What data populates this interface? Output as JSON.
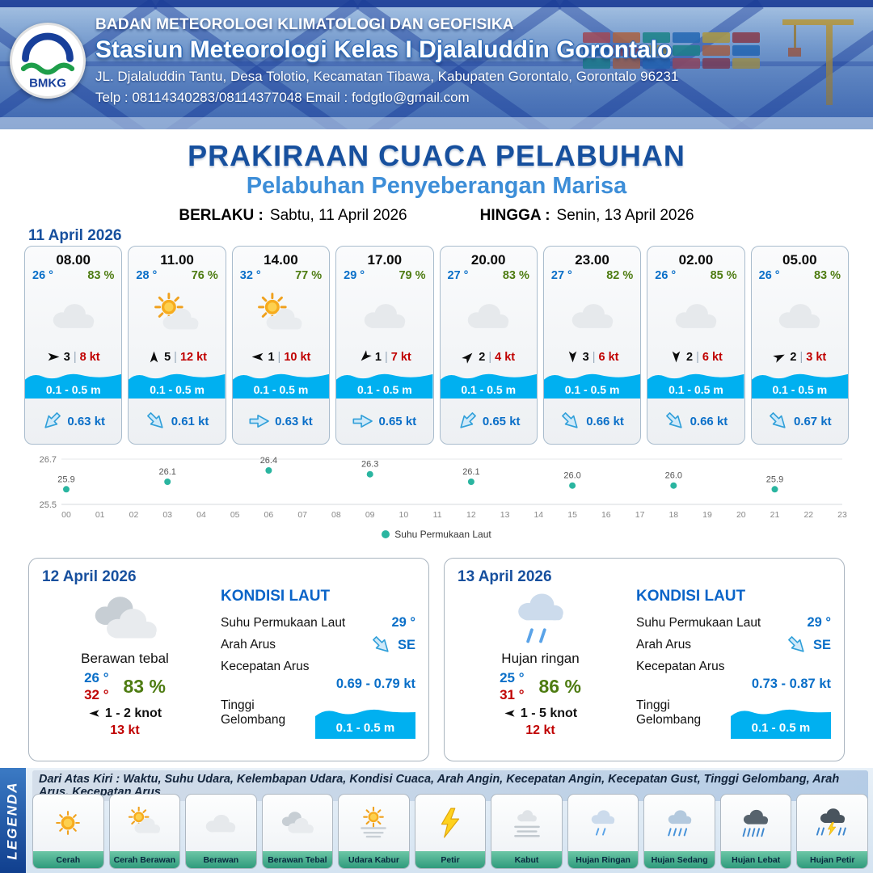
{
  "colors": {
    "dark_blue": "#17509e",
    "light_blue": "#3d8ed8",
    "temp_blue": "#0a6fc8",
    "humidity_green": "#4e7c12",
    "gust_red": "#c00000",
    "wave_cyan": "#00b0f0",
    "chart_teal": "#2ab5a0"
  },
  "ui": {
    "wind_separator": "|"
  },
  "header": {
    "logo_text": "BMKG",
    "agency": "BADAN METEOROLOGI KLIMATOLOGI DAN GEOFISIKA",
    "station": "Stasiun Meteorologi Kelas I Djalaluddin Gorontalo",
    "address": "JL. Djalaluddin Tantu, Desa Tolotio, Kecamatan Tibawa, Kabupaten Gorontalo, Gorontalo 96231",
    "contact": "Telp : 08114340283/08114377048 Email : fodgtlo@gmail.com"
  },
  "title": {
    "main": "PRAKIRAAN CUACA PELABUHAN",
    "subtitle": "Pelabuhan Penyeberangan Marisa",
    "valid_from_label": "BERLAKU :",
    "valid_from": "Sabtu, 11 April 2026",
    "valid_to_label": "HINGGA :",
    "valid_to": "Senin, 13 April 2026"
  },
  "forecast_date": "11 April 2026",
  "hourly": [
    {
      "time": "08.00",
      "temp": "26 °",
      "humidity": "83 %",
      "icon": "cloudy",
      "wind_deg": 0,
      "wind": "3",
      "gust": "8 kt",
      "wave": "0.1 - 0.5 m",
      "current_deg": 135,
      "current": "0.63 kt"
    },
    {
      "time": "11.00",
      "temp": "28 °",
      "humidity": "76 %",
      "icon": "partly",
      "wind_deg": -90,
      "wind": "5",
      "gust": "12 kt",
      "wave": "0.1 - 0.5 m",
      "current_deg": 45,
      "current": "0.61 kt"
    },
    {
      "time": "14.00",
      "temp": "32 °",
      "humidity": "77 %",
      "icon": "partly",
      "wind_deg": 180,
      "wind": "1",
      "gust": "10 kt",
      "wave": "0.1 - 0.5 m",
      "current_deg": 0,
      "current": "0.63 kt"
    },
    {
      "time": "17.00",
      "temp": "29 °",
      "humidity": "79 %",
      "icon": "cloudy",
      "wind_deg": 135,
      "wind": "1",
      "gust": "7 kt",
      "wave": "0.1 - 0.5 m",
      "current_deg": 0,
      "current": "0.65 kt"
    },
    {
      "time": "20.00",
      "temp": "27 °",
      "humidity": "83 %",
      "icon": "cloudy",
      "wind_deg": -45,
      "wind": "2",
      "gust": "4 kt",
      "wave": "0.1 - 0.5 m",
      "current_deg": 135,
      "current": "0.65 kt"
    },
    {
      "time": "23.00",
      "temp": "27 °",
      "humidity": "82 %",
      "icon": "cloudy",
      "wind_deg": 90,
      "wind": "3",
      "gust": "6 kt",
      "wave": "0.1 - 0.5 m",
      "current_deg": 45,
      "current": "0.66 kt"
    },
    {
      "time": "02.00",
      "temp": "26 °",
      "humidity": "85 %",
      "icon": "cloudy",
      "wind_deg": 90,
      "wind": "2",
      "gust": "6 kt",
      "wave": "0.1 - 0.5 m",
      "current_deg": 45,
      "current": "0.66 kt"
    },
    {
      "time": "05.00",
      "temp": "26 °",
      "humidity": "83 %",
      "icon": "cloudy",
      "wind_deg": -25,
      "wind": "2",
      "gust": "3 kt",
      "wave": "0.1 - 0.5 m",
      "current_deg": 45,
      "current": "0.67 kt"
    }
  ],
  "chart_data": {
    "type": "scatter",
    "series_name": "Suhu Permukaan Laut",
    "x": [
      0,
      3,
      6,
      9,
      12,
      15,
      18,
      21
    ],
    "values": [
      25.9,
      26.1,
      26.4,
      26.3,
      26.1,
      26.0,
      26.0,
      25.9
    ],
    "xticks": [
      "00",
      "01",
      "02",
      "03",
      "04",
      "05",
      "06",
      "07",
      "08",
      "09",
      "10",
      "11",
      "12",
      "13",
      "14",
      "15",
      "16",
      "17",
      "18",
      "19",
      "20",
      "21",
      "22",
      "23"
    ],
    "ylim": [
      25.5,
      26.7
    ],
    "xlabel": "",
    "ylabel": "",
    "grid": "minimal",
    "legend_position": "bottom",
    "color": "#2ab5a0"
  },
  "daily": [
    {
      "date": "12 April 2026",
      "icon": "cloudy-thick",
      "condition": "Berawan tebal",
      "temp_min": "26 °",
      "temp_max": "32 °",
      "humidity": "83 %",
      "wind_deg": 180,
      "wind_range": "1 - 2 knot",
      "gust": "13 kt",
      "sea": {
        "heading": "KONDISI LAUT",
        "sst_label": "Suhu Permukaan Laut",
        "sst": "29 °",
        "current_dir_label": "Arah Arus",
        "current_dir": "SE",
        "current_dir_deg": 45,
        "current_speed_label": "Kecepatan Arus",
        "current_speed": "0.69 - 0.79 kt",
        "wave_label": "Tinggi Gelombang",
        "wave": "0.1 - 0.5 m"
      }
    },
    {
      "date": "13 April 2026",
      "icon": "rain-light",
      "condition": "Hujan ringan",
      "temp_min": "25 °",
      "temp_max": "31 °",
      "humidity": "86 %",
      "wind_deg": 180,
      "wind_range": "1 - 5 knot",
      "gust": "12 kt",
      "sea": {
        "heading": "KONDISI LAUT",
        "sst_label": "Suhu Permukaan Laut",
        "sst": "29 °",
        "current_dir_label": "Arah Arus",
        "current_dir": "SE",
        "current_dir_deg": 45,
        "current_speed_label": "Kecepatan Arus",
        "current_speed": "0.73 - 0.87 kt",
        "wave_label": "Tinggi Gelombang",
        "wave": "0.1 - 0.5 m"
      }
    }
  ],
  "legend": {
    "ribbon": "LEGENDA",
    "description": "Dari Atas Kiri : Waktu, Suhu Udara, Kelembapan Udara, Kondisi Cuaca, Arah Angin, Kecepatan Angin, Kecepatan Gust, Tinggi Gelombang, Arah Arus, Kecepatan Arus",
    "items": [
      {
        "label": "Cerah",
        "icon": "sun"
      },
      {
        "label": "Cerah Berawan",
        "icon": "partly"
      },
      {
        "label": "Berawan",
        "icon": "cloudy"
      },
      {
        "label": "Berawan Tebal",
        "icon": "cloudy-thick"
      },
      {
        "label": "Udara Kabur",
        "icon": "haze"
      },
      {
        "label": "Petir",
        "icon": "thunder"
      },
      {
        "label": "Kabut",
        "icon": "fog"
      },
      {
        "label": "Hujan Ringan",
        "icon": "rain-light"
      },
      {
        "label": "Hujan Sedang",
        "icon": "rain-medium"
      },
      {
        "label": "Hujan Lebat",
        "icon": "rain-heavy"
      },
      {
        "label": "Hujan Petir",
        "icon": "rain-thunder"
      }
    ]
  }
}
